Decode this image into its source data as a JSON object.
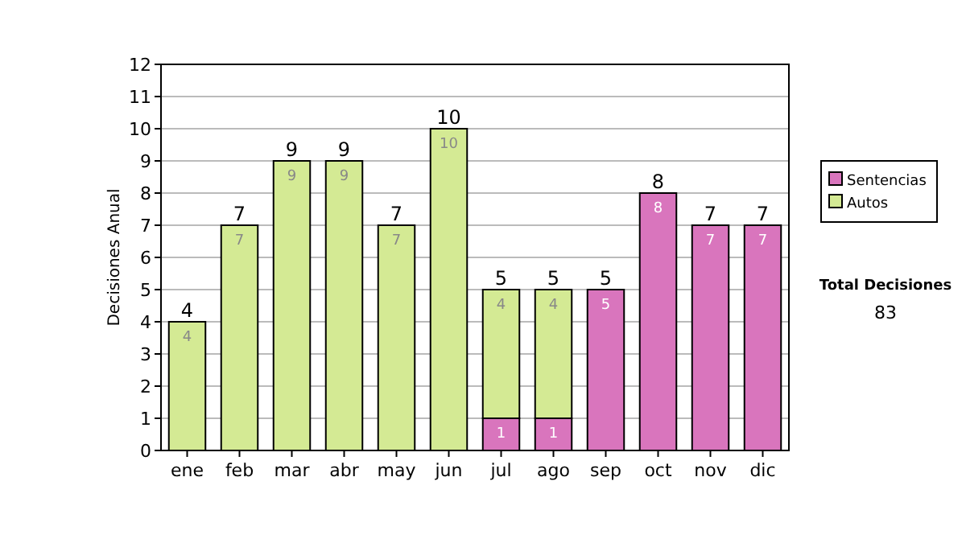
{
  "chart_data": {
    "type": "bar",
    "stacked": true,
    "ylabel": "Decisiones Anual",
    "categories": [
      "ene",
      "feb",
      "mar",
      "abr",
      "may",
      "jun",
      "jul",
      "ago",
      "sep",
      "oct",
      "nov",
      "dic"
    ],
    "series": [
      {
        "name": "Sentencias",
        "color": "#d975bd",
        "values": [
          0,
          0,
          0,
          0,
          0,
          0,
          1,
          1,
          5,
          8,
          7,
          7
        ],
        "value_labels": [
          null,
          null,
          null,
          null,
          null,
          null,
          "1",
          "1",
          "5",
          "8",
          "7",
          "7"
        ]
      },
      {
        "name": "Autos",
        "color": "#d4ea94",
        "values": [
          4,
          7,
          9,
          9,
          7,
          10,
          4,
          4,
          0,
          0,
          0,
          0
        ],
        "value_labels": [
          "4",
          "7",
          "9",
          "9",
          "7",
          "10",
          "4",
          "4",
          null,
          null,
          null,
          null
        ]
      }
    ],
    "totals": [
      "4",
      "7",
      "9",
      "9",
      "7",
      "10",
      "5",
      "5",
      "5",
      "8",
      "7",
      "7"
    ],
    "ylim": [
      0,
      12
    ],
    "yticks": [
      0,
      1,
      2,
      3,
      4,
      5,
      6,
      7,
      8,
      9,
      10,
      11,
      12
    ],
    "grid": "y",
    "legend": "right",
    "annotations": [
      "Total Decisiones",
      "83"
    ]
  }
}
